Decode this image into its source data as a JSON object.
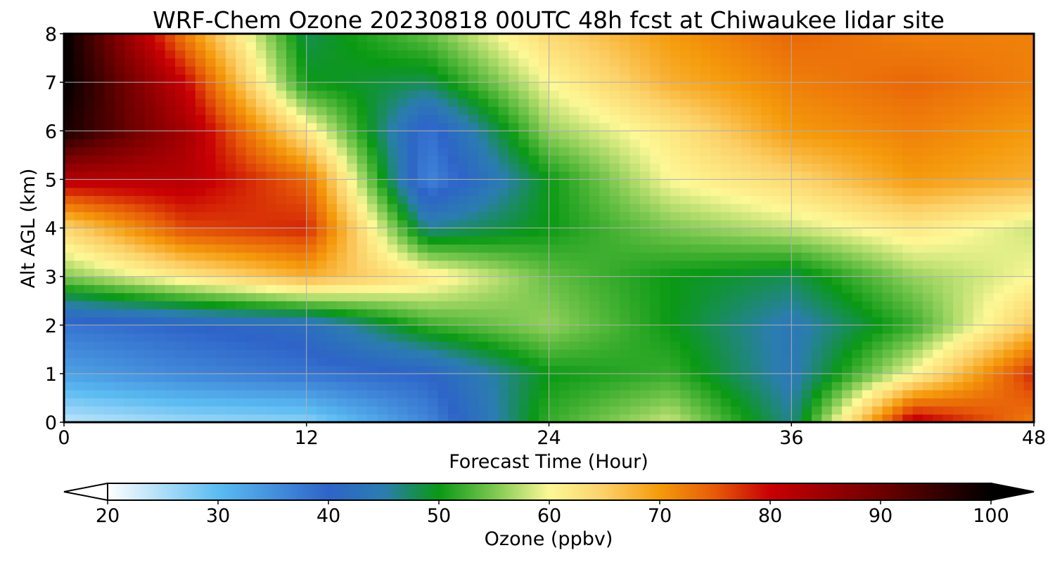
{
  "chart_data": {
    "type": "heatmap",
    "title": "WRF-Chem Ozone  20230818 00UTC 48h fcst at Chiwaukee lidar site",
    "xlabel": "Forecast Time (Hour)",
    "ylabel": "Alt AGL (km)",
    "xlim": [
      0,
      48
    ],
    "ylim": [
      0,
      8
    ],
    "xticks": [
      0,
      12,
      24,
      36,
      48
    ],
    "yticks": [
      0,
      1,
      2,
      3,
      4,
      5,
      6,
      7,
      8
    ],
    "grid": true,
    "x": [
      0,
      6,
      12,
      18,
      24,
      30,
      36,
      42,
      48
    ],
    "y": [
      0,
      1,
      2,
      3,
      4,
      5,
      6,
      7,
      8
    ],
    "z": [
      [
        24,
        26,
        27,
        36,
        52,
        58,
        46,
        82,
        72
      ],
      [
        33,
        36,
        38,
        40,
        50,
        52,
        44,
        60,
        78
      ],
      [
        38,
        40,
        42,
        52,
        56,
        50,
        44,
        52,
        66
      ],
      [
        55,
        62,
        68,
        62,
        54,
        50,
        48,
        56,
        60
      ],
      [
        64,
        76,
        78,
        46,
        50,
        55,
        58,
        62,
        58
      ],
      [
        82,
        82,
        74,
        36,
        50,
        60,
        64,
        70,
        68
      ],
      [
        98,
        84,
        62,
        38,
        56,
        62,
        70,
        72,
        70
      ],
      [
        100,
        80,
        50,
        48,
        60,
        68,
        72,
        74,
        72
      ],
      [
        100,
        72,
        48,
        54,
        64,
        70,
        74,
        72,
        72
      ]
    ],
    "colorbar": {
      "label": "Ozone  (ppbv)",
      "range": [
        20,
        100
      ],
      "ticks": [
        20,
        30,
        40,
        50,
        60,
        70,
        80,
        90,
        100
      ],
      "extend": "both",
      "stops": [
        {
          "v": 20,
          "c": "#ffffff"
        },
        {
          "v": 30,
          "c": "#5bbcf2"
        },
        {
          "v": 40,
          "c": "#2e64c8"
        },
        {
          "v": 45,
          "c": "#2b7db0"
        },
        {
          "v": 50,
          "c": "#0a9914"
        },
        {
          "v": 55,
          "c": "#7cc850"
        },
        {
          "v": 60,
          "c": "#fdf896"
        },
        {
          "v": 65,
          "c": "#fcd068"
        },
        {
          "v": 70,
          "c": "#f59a0c"
        },
        {
          "v": 75,
          "c": "#e65a08"
        },
        {
          "v": 80,
          "c": "#c80004"
        },
        {
          "v": 90,
          "c": "#6e0000"
        },
        {
          "v": 100,
          "c": "#000000"
        }
      ]
    }
  }
}
